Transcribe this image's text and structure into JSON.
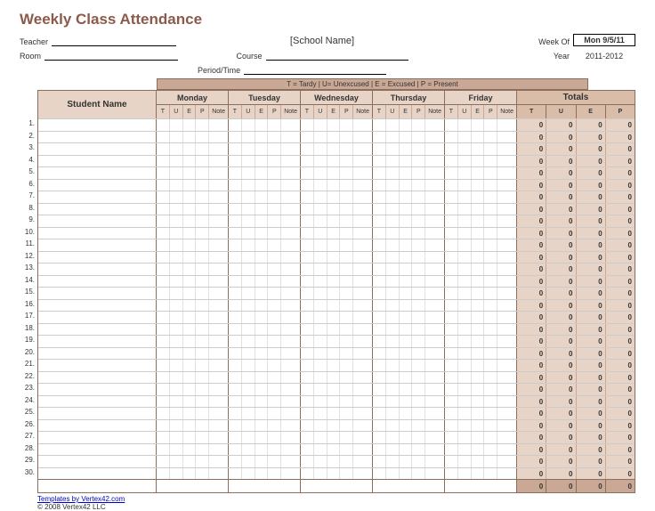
{
  "title": "Weekly Class Attendance",
  "school_name": "[School Name]",
  "fields": {
    "teacher_label": "Teacher",
    "room_label": "Room",
    "course_label": "Course",
    "period_label": "Period/Time",
    "week_of_label": "Week Of",
    "year_label": "Year"
  },
  "week_of": "Mon 9/5/11",
  "year": "2011-2012",
  "legend": "T = Tardy    |    U= Unexcused    |    E = Excused    |    P = Present",
  "columns": {
    "student": "Student Name",
    "days": [
      "Monday",
      "Tuesday",
      "Wednesday",
      "Thursday",
      "Friday"
    ],
    "subcols": [
      "T",
      "U",
      "E",
      "P",
      "Note"
    ],
    "totals": "Totals",
    "totals_sub": [
      "T",
      "U",
      "E",
      "P"
    ]
  },
  "row_count": 30,
  "totals_row_value": 0,
  "grand_totals": [
    0,
    0,
    0,
    0
  ],
  "footer": {
    "link_text": "Templates by Vertex42.com",
    "copyright": "© 2008 Vertex42 LLC"
  },
  "colors": {
    "accent": "#8b5a4a",
    "header_bg": "#e8d4c6",
    "totals_bg": "#d9bda9",
    "legend_bg": "#c9a896",
    "border": "#8b6f5c"
  }
}
